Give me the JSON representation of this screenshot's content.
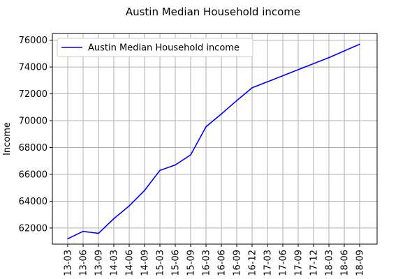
{
  "chart_data": {
    "type": "line",
    "title": "Austin Median Household income",
    "xlabel": "",
    "ylabel": "Income",
    "categories": [
      "13-03",
      "13-06",
      "13-09",
      "14-03",
      "14-06",
      "14-09",
      "15-03",
      "15-06",
      "15-09",
      "16-03",
      "16-06",
      "16-09",
      "16-12",
      "17-03",
      "17-06",
      "17-09",
      "17-12",
      "18-03",
      "18-06",
      "18-09"
    ],
    "series": [
      {
        "name": "Austin Median Household income",
        "color": "#0000ff",
        "values": [
          61200,
          61750,
          61600,
          62700,
          63650,
          64800,
          66300,
          66700,
          67450,
          69550,
          70500,
          71500,
          72450,
          72900,
          73350,
          73800,
          74250,
          74700,
          75200,
          75700
        ]
      }
    ],
    "y_ticks": [
      62000,
      64000,
      66000,
      68000,
      70000,
      72000,
      74000,
      76000
    ],
    "ylim": [
      60800,
      76500
    ],
    "grid": true,
    "legend_position": "upper-left"
  }
}
